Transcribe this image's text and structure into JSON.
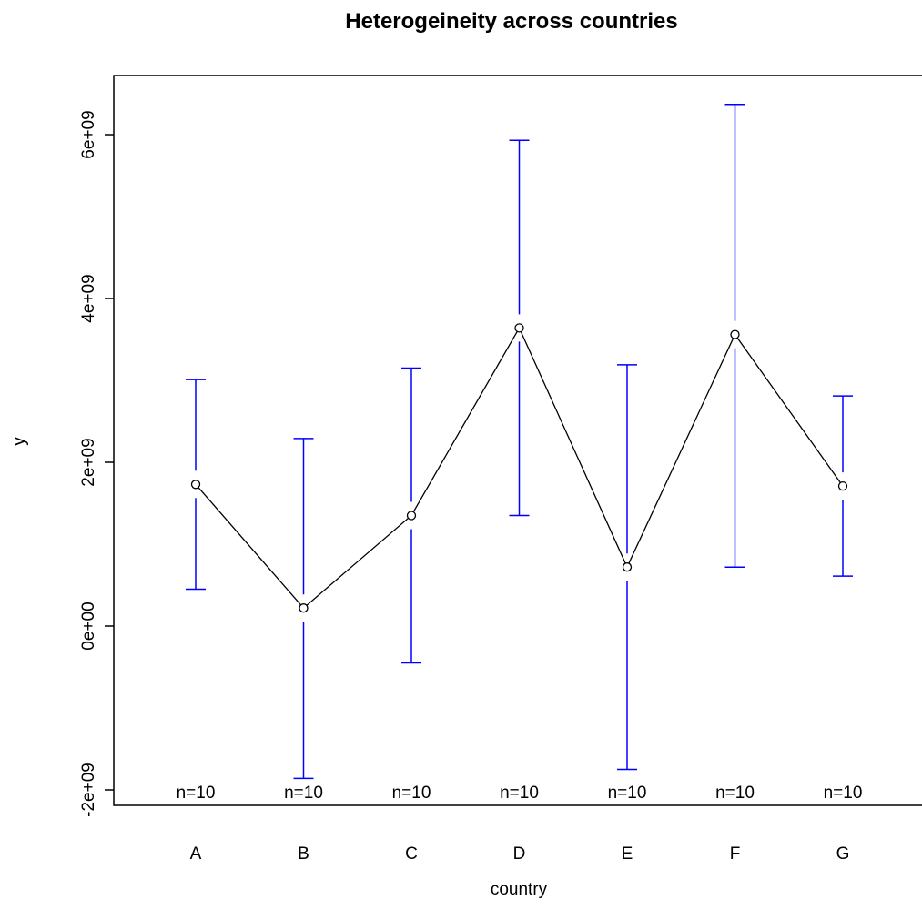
{
  "chart_data": {
    "type": "line",
    "title": "Heterogeineity across countries",
    "xlabel": "country",
    "ylabel": "y",
    "categories": [
      "A",
      "B",
      "C",
      "D",
      "E",
      "F",
      "G"
    ],
    "y_ticks": [
      -2000000000,
      0,
      2000000000,
      4000000000,
      6000000000
    ],
    "y_tick_labels": [
      "-2e+09",
      "0e+00",
      "2e+09",
      "4e+09",
      "6e+09"
    ],
    "ylim": [
      -2200000000,
      6700000000
    ],
    "series": [
      {
        "means": [
          1730000000,
          220000000,
          1350000000,
          3640000000,
          720000000,
          3560000000,
          1710000000
        ],
        "lower": [
          450000000,
          -1860000000,
          -450000000,
          1350000000,
          -1750000000,
          720000000,
          610000000
        ],
        "upper": [
          3010000000,
          2290000000,
          3150000000,
          5930000000,
          3190000000,
          6370000000,
          2810000000
        ]
      }
    ],
    "n_labels": [
      "n=10",
      "n=10",
      "n=10",
      "n=10",
      "n=10",
      "n=10",
      "n=10"
    ],
    "colors": {
      "line": "#000000",
      "error_bar": "#0000ff"
    },
    "grid": false
  }
}
